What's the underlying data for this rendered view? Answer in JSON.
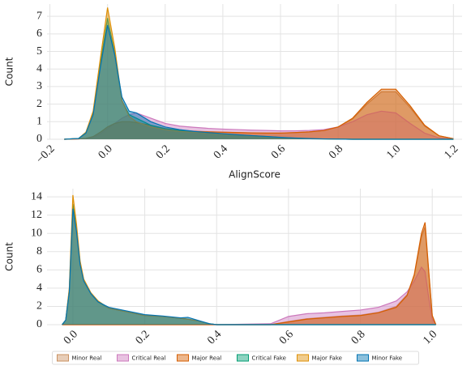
{
  "chart_data": [
    {
      "type": "area",
      "xlabel": "AlignScore",
      "ylabel": "Count",
      "x": [
        -0.15,
        -0.1,
        -0.075,
        -0.05,
        -0.025,
        0,
        0.025,
        0.05,
        0.075,
        0.1,
        0.15,
        0.2,
        0.25,
        0.3,
        0.35,
        0.4,
        0.45,
        0.5,
        0.55,
        0.6,
        0.65,
        0.7,
        0.75,
        0.8,
        0.85,
        0.9,
        0.95,
        1.0,
        1.05,
        1.1,
        1.15,
        1.2
      ],
      "xlim": [
        -0.21,
        1.23
      ],
      "ylim": [
        0,
        7.7
      ],
      "xticks": [
        {
          "value": -0.2,
          "label": "−0.2"
        },
        {
          "value": 0,
          "label": "0.0"
        },
        0.2,
        0.4,
        0.6,
        0.8,
        {
          "value": 1,
          "label": "1.0"
        },
        1.2
      ],
      "yticks": [
        0,
        1,
        2,
        3,
        4,
        5,
        6,
        7
      ],
      "grid": true,
      "series": [
        {
          "name": "Minor Real",
          "color": "#ca9161",
          "values": [
            0,
            0.02,
            0.05,
            0.15,
            0.4,
            0.7,
            0.9,
            1.0,
            1.0,
            0.95,
            0.8,
            0.62,
            0.52,
            0.47,
            0.43,
            0.41,
            0.39,
            0.37,
            0.36,
            0.36,
            0.38,
            0.42,
            0.5,
            0.7,
            1.15,
            2.0,
            2.7,
            2.7,
            1.8,
            0.75,
            0.2,
            0.03
          ]
        },
        {
          "name": "Critical Real",
          "color": "#cc78bc",
          "values": [
            0,
            0.02,
            0.05,
            0.1,
            0.3,
            0.6,
            0.9,
            1.2,
            1.4,
            1.5,
            1.2,
            0.9,
            0.75,
            0.68,
            0.62,
            0.58,
            0.55,
            0.52,
            0.5,
            0.48,
            0.48,
            0.5,
            0.55,
            0.7,
            1.0,
            1.4,
            1.6,
            1.5,
            0.9,
            0.35,
            0.08,
            0.01
          ]
        },
        {
          "name": "Major Real",
          "color": "#d55e00",
          "values": [
            0,
            0.02,
            0.05,
            0.15,
            0.4,
            0.7,
            0.9,
            1.0,
            1.0,
            0.95,
            0.8,
            0.6,
            0.5,
            0.45,
            0.42,
            0.4,
            0.38,
            0.36,
            0.35,
            0.35,
            0.38,
            0.42,
            0.5,
            0.7,
            1.2,
            2.1,
            2.85,
            2.85,
            1.9,
            0.8,
            0.2,
            0.03
          ]
        },
        {
          "name": "Critical Fake",
          "color": "#029e73",
          "values": [
            0,
            0.05,
            0.4,
            1.5,
            4.3,
            6.9,
            4.9,
            2.2,
            1.4,
            1.2,
            0.8,
            0.6,
            0.5,
            0.42,
            0.36,
            0.3,
            0.25,
            0.2,
            0.15,
            0.1,
            0.06,
            0.03,
            0.02,
            0.01,
            0,
            0,
            0,
            0,
            0,
            0,
            0,
            0
          ]
        },
        {
          "name": "Major Fake",
          "color": "#de8f05",
          "values": [
            0,
            0.05,
            0.4,
            1.6,
            4.6,
            7.5,
            5.2,
            2.2,
            1.3,
            1.0,
            0.7,
            0.55,
            0.45,
            0.4,
            0.35,
            0.3,
            0.25,
            0.2,
            0.15,
            0.1,
            0.05,
            0.03,
            0.02,
            0.01,
            0,
            0,
            0,
            0,
            0,
            0,
            0,
            0
          ]
        },
        {
          "name": "Minor Fake",
          "color": "#0173b2",
          "values": [
            0,
            0.05,
            0.35,
            1.4,
            4.1,
            6.5,
            4.8,
            2.4,
            1.6,
            1.5,
            1.0,
            0.7,
            0.55,
            0.45,
            0.38,
            0.32,
            0.26,
            0.21,
            0.16,
            0.11,
            0.07,
            0.04,
            0.02,
            0.01,
            0,
            0,
            0,
            0,
            0,
            0,
            0,
            0
          ]
        }
      ]
    },
    {
      "type": "area",
      "ylabel": "Count",
      "x": [
        -0.03,
        -0.02,
        -0.01,
        0,
        0.01,
        0.02,
        0.03,
        0.05,
        0.07,
        0.1,
        0.15,
        0.2,
        0.25,
        0.3,
        0.32,
        0.35,
        0.38,
        0.4,
        0.55,
        0.6,
        0.65,
        0.7,
        0.75,
        0.8,
        0.85,
        0.9,
        0.93,
        0.95,
        0.97,
        0.98,
        0.99,
        1.0,
        1.01
      ],
      "xlim": [
        -0.072,
        1.083
      ],
      "ylim": [
        0,
        14.9
      ],
      "xticks": [
        {
          "value": 0,
          "label": "0.0"
        },
        0.2,
        0.4,
        0.6,
        0.8,
        {
          "value": 1,
          "label": "1.0"
        }
      ],
      "yticks": [
        0,
        2,
        4,
        6,
        8,
        10,
        12,
        14
      ],
      "grid": true,
      "legend": "bottom",
      "series": [
        {
          "name": "Minor Real",
          "color": "#ca9161",
          "values": [
            0,
            0,
            0,
            0,
            0,
            0,
            0,
            0,
            0,
            0,
            0,
            0,
            0,
            0,
            0,
            0,
            0,
            0,
            0,
            0.35,
            0.65,
            0.8,
            0.95,
            1.05,
            1.35,
            2.0,
            3.3,
            5.4,
            9.6,
            10.7,
            5.8,
            1.0,
            0
          ]
        },
        {
          "name": "Critical Real",
          "color": "#cc78bc",
          "values": [
            0,
            0,
            0,
            0,
            0,
            0,
            0,
            0,
            0,
            0,
            0,
            0,
            0,
            0,
            0,
            0,
            0,
            0,
            0.1,
            0.9,
            1.2,
            1.3,
            1.45,
            1.6,
            1.9,
            2.6,
            3.6,
            4.8,
            6.3,
            5.8,
            3.0,
            0.6,
            0
          ]
        },
        {
          "name": "Major Real",
          "color": "#d55e00",
          "values": [
            0,
            0,
            0,
            0,
            0,
            0,
            0,
            0,
            0,
            0,
            0,
            0,
            0,
            0,
            0,
            0,
            0,
            0,
            0,
            0.3,
            0.6,
            0.75,
            0.9,
            1.0,
            1.3,
            1.9,
            3.2,
            5.5,
            10.0,
            11.2,
            6.0,
            1.0,
            0
          ]
        },
        {
          "name": "Critical Fake",
          "color": "#029e73",
          "values": [
            0,
            0.5,
            3.8,
            13.2,
            10.5,
            6.8,
            4.9,
            3.4,
            2.5,
            1.8,
            1.4,
            1.0,
            0.9,
            0.7,
            0.6,
            0.4,
            0.1,
            0,
            0,
            0,
            0,
            0,
            0,
            0,
            0,
            0,
            0,
            0,
            0,
            0,
            0,
            0,
            0
          ]
        },
        {
          "name": "Major Fake",
          "color": "#de8f05",
          "values": [
            0,
            0.5,
            4.0,
            14.2,
            11.0,
            7.0,
            5.0,
            3.5,
            2.6,
            1.8,
            1.4,
            1.0,
            0.9,
            0.7,
            0.6,
            0.4,
            0.1,
            0,
            0,
            0,
            0,
            0,
            0,
            0,
            0,
            0,
            0,
            0,
            0,
            0,
            0,
            0,
            0
          ]
        },
        {
          "name": "Minor Fake",
          "color": "#0173b2",
          "values": [
            0,
            0.5,
            3.6,
            12.7,
            10.2,
            6.6,
            4.8,
            3.4,
            2.5,
            1.9,
            1.5,
            1.1,
            0.95,
            0.75,
            0.8,
            0.45,
            0.1,
            0,
            0,
            0,
            0,
            0,
            0,
            0,
            0,
            0,
            0,
            0,
            0,
            0,
            0,
            0,
            0
          ]
        }
      ]
    }
  ]
}
